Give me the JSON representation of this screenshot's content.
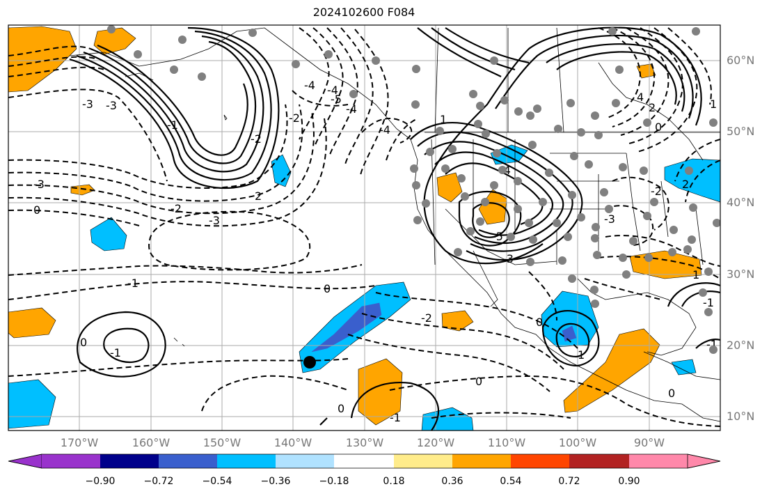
{
  "title": "2024102600 F084",
  "lat_labels": [
    "60°N",
    "50°N",
    "40°N",
    "30°N",
    "20°N",
    "10°N"
  ],
  "lon_labels": [
    "170°W",
    "160°W",
    "150°W",
    "140°W",
    "130°W",
    "120°W",
    "110°W",
    "100°W",
    "90°W"
  ],
  "colorbar": {
    "ticks": [
      "−0.90",
      "−0.72",
      "−0.54",
      "−0.36",
      "−0.18",
      "0.18",
      "0.36",
      "0.54",
      "0.72",
      "0.90"
    ],
    "colors": [
      "#9932cc",
      "#00008b",
      "#3a5fcd",
      "#00bfff",
      "#b0e2ff",
      "#ffffff",
      "#ffec8b",
      "#ffa500",
      "#ff4500",
      "#b22222",
      "#ff88aa"
    ]
  },
  "contour_labels": [
    "-3",
    "0",
    "-2",
    "-3",
    "2",
    "-1",
    "-4",
    "-5",
    "-4",
    "-4",
    "-3",
    "0",
    "-2",
    "-1",
    "-4",
    "-3",
    "-4",
    "-5",
    "-3",
    "1",
    "0",
    "-2",
    "-3",
    "0",
    "-2",
    "-1",
    "-2",
    "0",
    "-1",
    "0",
    "1",
    "-1",
    "0",
    "-1",
    "0",
    "1",
    "2",
    "4",
    "2",
    "1"
  ]
}
